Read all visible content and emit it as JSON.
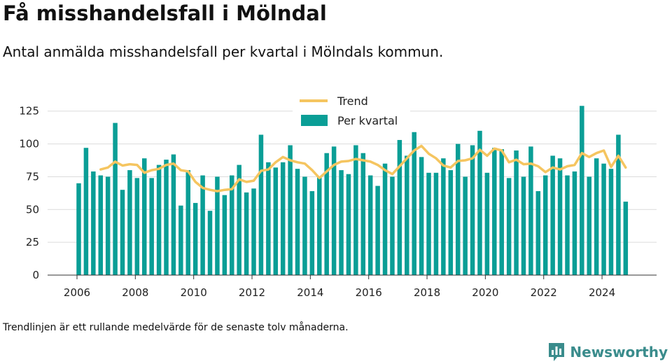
{
  "header": {
    "title": "Få misshandelsfall i Mölndal",
    "subtitle": "Antal anmälda misshandelsfall per kvartal i Mölndals kommun."
  },
  "footer": {
    "note": "Trendlinjen är ett rullande medelvärde för de senaste tolv månaderna.",
    "brand": "Newsworthy",
    "brand_icon": "bar-chart-speech-icon",
    "brand_color": "#3a8c8c"
  },
  "chart_data": {
    "type": "bar",
    "x_ticks": [
      "2006",
      "2008",
      "2010",
      "2012",
      "2014",
      "2016",
      "2018",
      "2020",
      "2022",
      "2024"
    ],
    "y_ticks": [
      0,
      25,
      50,
      75,
      100,
      125
    ],
    "ylim": [
      0,
      135
    ],
    "grid": true,
    "legend_position": "top-center",
    "series": [
      {
        "name": "Per kvartal",
        "type": "bar",
        "color": "#0a9e96",
        "x": [
          "2006 Q1",
          "2006 Q2",
          "2006 Q3",
          "2006 Q4",
          "2007 Q1",
          "2007 Q2",
          "2007 Q3",
          "2007 Q4",
          "2008 Q1",
          "2008 Q2",
          "2008 Q3",
          "2008 Q4",
          "2009 Q1",
          "2009 Q2",
          "2009 Q3",
          "2009 Q4",
          "2010 Q1",
          "2010 Q2",
          "2010 Q3",
          "2010 Q4",
          "2011 Q1",
          "2011 Q2",
          "2011 Q3",
          "2011 Q4",
          "2012 Q1",
          "2012 Q2",
          "2012 Q3",
          "2012 Q4",
          "2013 Q1",
          "2013 Q2",
          "2013 Q3",
          "2013 Q4",
          "2014 Q1",
          "2014 Q2",
          "2014 Q3",
          "2014 Q4",
          "2015 Q1",
          "2015 Q2",
          "2015 Q3",
          "2015 Q4",
          "2016 Q1",
          "2016 Q2",
          "2016 Q3",
          "2016 Q4",
          "2017 Q1",
          "2017 Q2",
          "2017 Q3",
          "2017 Q4",
          "2018 Q1",
          "2018 Q2",
          "2018 Q3",
          "2018 Q4",
          "2019 Q1",
          "2019 Q2",
          "2019 Q3",
          "2019 Q4",
          "2020 Q1",
          "2020 Q2",
          "2020 Q3",
          "2020 Q4",
          "2021 Q1",
          "2021 Q2",
          "2021 Q3",
          "2021 Q4",
          "2022 Q1",
          "2022 Q2",
          "2022 Q3",
          "2022 Q4",
          "2023 Q1",
          "2023 Q2",
          "2023 Q3",
          "2023 Q4",
          "2024 Q1",
          "2024 Q2",
          "2024 Q3",
          "2024 Q4"
        ],
        "values": [
          70,
          97,
          79,
          76,
          75,
          116,
          65,
          80,
          74,
          89,
          74,
          84,
          88,
          92,
          53,
          80,
          55,
          76,
          49,
          75,
          61,
          76,
          84,
          63,
          66,
          107,
          86,
          82,
          86,
          99,
          81,
          75,
          64,
          75,
          93,
          98,
          80,
          77,
          99,
          93,
          76,
          68,
          85,
          75,
          103,
          91,
          109,
          90,
          78,
          78,
          89,
          80,
          100,
          75,
          99,
          110,
          78,
          97,
          96,
          74,
          95,
          75,
          98,
          64,
          76,
          91,
          89,
          76,
          79,
          129,
          75,
          89,
          85,
          81,
          107,
          56
        ]
      },
      {
        "name": "Trend",
        "type": "line",
        "color": "#f5c560",
        "x": [
          "2006 Q4",
          "2007 Q1",
          "2007 Q2",
          "2007 Q3",
          "2007 Q4",
          "2008 Q1",
          "2008 Q2",
          "2008 Q3",
          "2008 Q4",
          "2009 Q1",
          "2009 Q2",
          "2009 Q3",
          "2009 Q4",
          "2010 Q1",
          "2010 Q2",
          "2010 Q3",
          "2010 Q4",
          "2011 Q1",
          "2011 Q2",
          "2011 Q3",
          "2011 Q4",
          "2012 Q1",
          "2012 Q2",
          "2012 Q3",
          "2012 Q4",
          "2013 Q1",
          "2013 Q2",
          "2013 Q3",
          "2013 Q4",
          "2014 Q1",
          "2014 Q2",
          "2014 Q3",
          "2014 Q4",
          "2015 Q1",
          "2015 Q2",
          "2015 Q3",
          "2015 Q4",
          "2016 Q1",
          "2016 Q2",
          "2016 Q3",
          "2016 Q4",
          "2017 Q1",
          "2017 Q2",
          "2017 Q3",
          "2017 Q4",
          "2018 Q1",
          "2018 Q2",
          "2018 Q3",
          "2018 Q4",
          "2019 Q1",
          "2019 Q2",
          "2019 Q3",
          "2019 Q4",
          "2020 Q1",
          "2020 Q2",
          "2020 Q3",
          "2020 Q4",
          "2021 Q1",
          "2021 Q2",
          "2021 Q3",
          "2021 Q4",
          "2022 Q1",
          "2022 Q2",
          "2022 Q3",
          "2022 Q4",
          "2023 Q1",
          "2023 Q2",
          "2023 Q3",
          "2023 Q4",
          "2024 Q1",
          "2024 Q2",
          "2024 Q3",
          "2024 Q4"
        ],
        "values": [
          80.5,
          82,
          86.5,
          83.5,
          84.5,
          84,
          78,
          80,
          81,
          84,
          85,
          80,
          79,
          71,
          66.5,
          65,
          64,
          65,
          65.5,
          73,
          71,
          72,
          79.5,
          80.5,
          86,
          90,
          87.5,
          86,
          85,
          80,
          74,
          79,
          84,
          86.5,
          87,
          88.5,
          87.5,
          86.5,
          84,
          80,
          77,
          83,
          89,
          95,
          98.5,
          92.5,
          89,
          83.5,
          82,
          87,
          87.5,
          89,
          95.5,
          91,
          96.5,
          95,
          86,
          88,
          84.5,
          85,
          83,
          78.5,
          82,
          80.5,
          83,
          84,
          93,
          90,
          93,
          95,
          82.5,
          91,
          82
        ]
      }
    ]
  }
}
